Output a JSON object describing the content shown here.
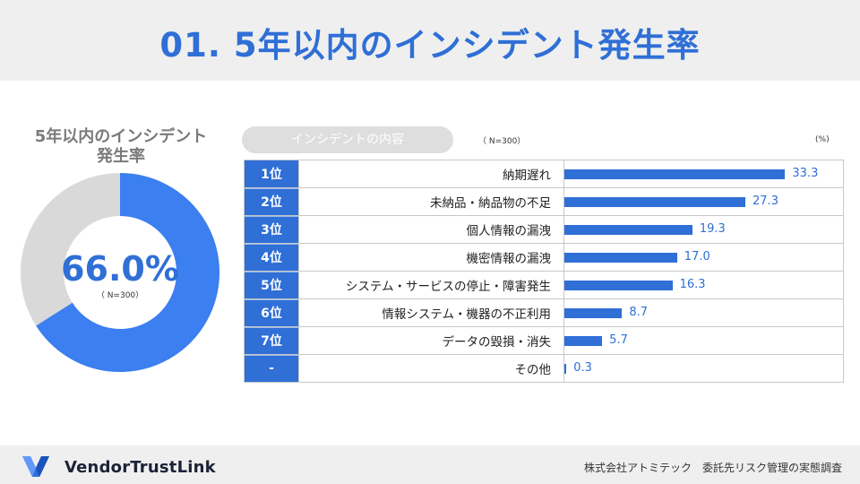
{
  "header": {
    "title": "01. 5年以内のインシデント発生率"
  },
  "donut": {
    "title_line1": "5年以内のインシデント",
    "title_line2": "発生率",
    "value_label": "66.0%",
    "value": 66.0,
    "n_label": "（ N=300）",
    "colors": {
      "filled": "#3b7ff0",
      "empty": "#d9d9d9"
    }
  },
  "list": {
    "pill_label": "インシデントの内容",
    "n_label": "（ N=300）",
    "unit_label": "(%)"
  },
  "chart_data": {
    "type": "bar",
    "orientation": "horizontal",
    "title": "インシデントの内容",
    "unit": "%",
    "xlim": [
      0,
      40
    ],
    "ranks": [
      "1位",
      "2位",
      "3位",
      "4位",
      "5位",
      "6位",
      "7位",
      "-"
    ],
    "categories": [
      "納期遅れ",
      "未納品・納品物の不足",
      "個人情報の漏洩",
      "機密情報の漏洩",
      "システム・サービスの停止・障害発生",
      "情報システム・機器の不正利用",
      "データの毀損・消失",
      "その他"
    ],
    "values": [
      33.3,
      27.3,
      19.3,
      17.0,
      16.3,
      8.7,
      5.7,
      0.3
    ],
    "value_labels": [
      "33.3",
      "27.3",
      "19.3",
      "17.0",
      "16.3",
      "8.7",
      "5.7",
      "0.3"
    ],
    "bar_color": "#2f6fd6"
  },
  "footer": {
    "brand": "VendorTrustLink",
    "credit": "株式会社アトミテック　委託先リスク管理の実態調査",
    "logo": "vendortrustlink-logo-icon"
  }
}
